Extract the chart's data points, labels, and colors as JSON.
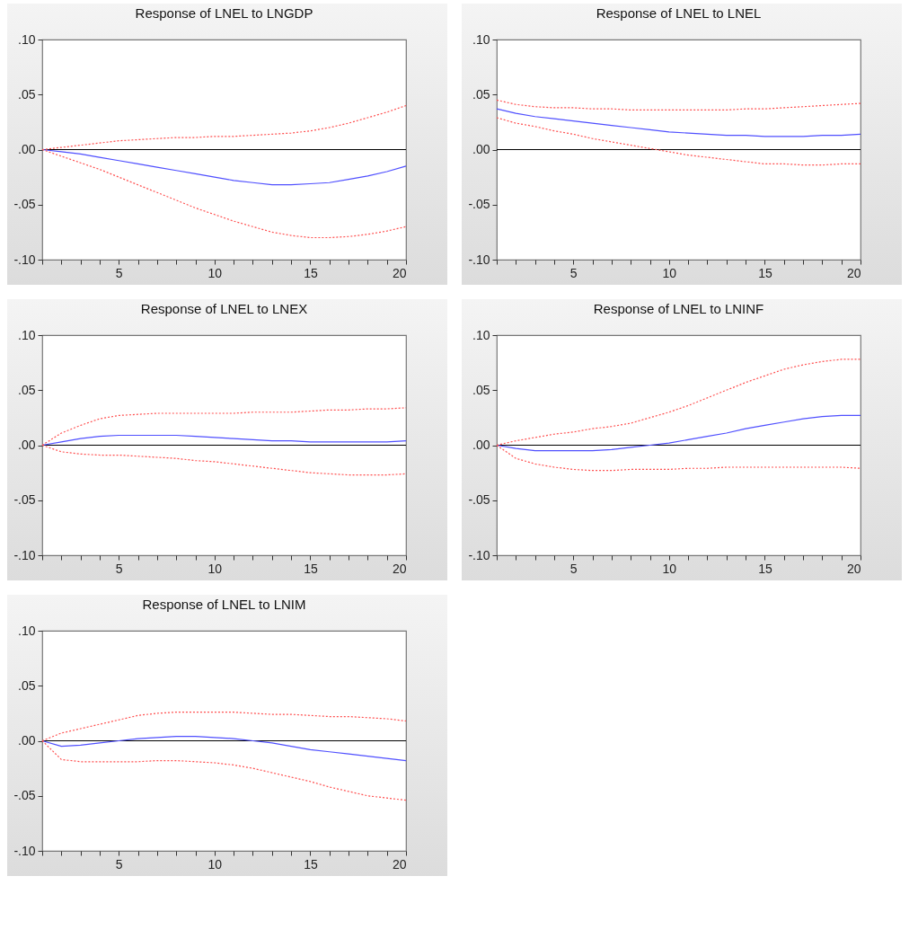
{
  "chart_data": [
    {
      "type": "line",
      "title": "Response of LNEL to LNGDP",
      "x": [
        1,
        2,
        3,
        4,
        5,
        6,
        7,
        8,
        9,
        10,
        11,
        12,
        13,
        14,
        15,
        16,
        17,
        18,
        19,
        20
      ],
      "xlim": [
        1,
        20
      ],
      "xticks": [
        {
          "value": 1,
          "label": null
        },
        {
          "value": 2,
          "label": null
        },
        {
          "value": 3,
          "label": null
        },
        {
          "value": 4,
          "label": null
        },
        5,
        {
          "value": 6,
          "label": null
        },
        {
          "value": 7,
          "label": null
        },
        {
          "value": 8,
          "label": null
        },
        {
          "value": 9,
          "label": null
        },
        10,
        {
          "value": 11,
          "label": null
        },
        {
          "value": 12,
          "label": null
        },
        {
          "value": 13,
          "label": null
        },
        {
          "value": 14,
          "label": null
        },
        15,
        {
          "value": 16,
          "label": null
        },
        {
          "value": 17,
          "label": null
        },
        {
          "value": 18,
          "label": null
        },
        {
          "value": 19,
          "label": null
        },
        20
      ],
      "ylim": [
        -0.1,
        0.1
      ],
      "yticks": [
        {
          "value": -0.1,
          "label": "-.10"
        },
        {
          "value": -0.05,
          "label": "-.05"
        },
        {
          "value": 0,
          "label": ".00"
        },
        {
          "value": 0.05,
          "label": ".05"
        },
        {
          "value": 0.1,
          "label": ".10"
        }
      ],
      "ref_lines": [
        {
          "axis": "y",
          "value": 0,
          "color": "#000000"
        }
      ],
      "series": [
        {
          "color": "#5050ff",
          "line_style": "solid",
          "values": [
            0,
            -0.002,
            -0.004,
            -0.007,
            -0.01,
            -0.013,
            -0.016,
            -0.019,
            -0.022,
            -0.025,
            -0.028,
            -0.03,
            -0.032,
            -0.032,
            -0.031,
            -0.03,
            -0.027,
            -0.024,
            -0.02,
            -0.015
          ]
        },
        {
          "color": "#ff5050",
          "line_style": "dotted",
          "values": [
            0,
            0.002,
            0.004,
            0.006,
            0.008,
            0.009,
            0.01,
            0.011,
            0.011,
            0.012,
            0.012,
            0.013,
            0.014,
            0.015,
            0.017,
            0.02,
            0.024,
            0.029,
            0.034,
            0.04
          ]
        },
        {
          "color": "#ff5050",
          "line_style": "dotted",
          "values": [
            0,
            -0.006,
            -0.012,
            -0.018,
            -0.025,
            -0.032,
            -0.039,
            -0.046,
            -0.053,
            -0.059,
            -0.065,
            -0.07,
            -0.075,
            -0.078,
            -0.08,
            -0.08,
            -0.079,
            -0.077,
            -0.074,
            -0.07
          ]
        }
      ]
    },
    {
      "type": "line",
      "title": "Response of LNEL to LNEL",
      "x": [
        1,
        2,
        3,
        4,
        5,
        6,
        7,
        8,
        9,
        10,
        11,
        12,
        13,
        14,
        15,
        16,
        17,
        18,
        19,
        20
      ],
      "xlim": [
        1,
        20
      ],
      "xticks": [
        {
          "value": 1,
          "label": null
        },
        {
          "value": 2,
          "label": null
        },
        {
          "value": 3,
          "label": null
        },
        {
          "value": 4,
          "label": null
        },
        5,
        {
          "value": 6,
          "label": null
        },
        {
          "value": 7,
          "label": null
        },
        {
          "value": 8,
          "label": null
        },
        {
          "value": 9,
          "label": null
        },
        10,
        {
          "value": 11,
          "label": null
        },
        {
          "value": 12,
          "label": null
        },
        {
          "value": 13,
          "label": null
        },
        {
          "value": 14,
          "label": null
        },
        15,
        {
          "value": 16,
          "label": null
        },
        {
          "value": 17,
          "label": null
        },
        {
          "value": 18,
          "label": null
        },
        {
          "value": 19,
          "label": null
        },
        20
      ],
      "ylim": [
        -0.1,
        0.1
      ],
      "yticks": [
        {
          "value": -0.1,
          "label": "-.10"
        },
        {
          "value": -0.05,
          "label": "-.05"
        },
        {
          "value": 0,
          "label": ".00"
        },
        {
          "value": 0.05,
          "label": ".05"
        },
        {
          "value": 0.1,
          "label": ".10"
        }
      ],
      "ref_lines": [
        {
          "axis": "y",
          "value": 0,
          "color": "#000000"
        }
      ],
      "series": [
        {
          "color": "#5050ff",
          "line_style": "solid",
          "values": [
            0.037,
            0.033,
            0.03,
            0.028,
            0.026,
            0.024,
            0.022,
            0.02,
            0.018,
            0.016,
            0.015,
            0.014,
            0.013,
            0.013,
            0.012,
            0.012,
            0.012,
            0.013,
            0.013,
            0.014
          ]
        },
        {
          "color": "#ff5050",
          "line_style": "dotted",
          "values": [
            0.045,
            0.041,
            0.039,
            0.038,
            0.038,
            0.037,
            0.037,
            0.036,
            0.036,
            0.036,
            0.036,
            0.036,
            0.036,
            0.037,
            0.037,
            0.038,
            0.039,
            0.04,
            0.041,
            0.042
          ]
        },
        {
          "color": "#ff5050",
          "line_style": "dotted",
          "values": [
            0.029,
            0.024,
            0.021,
            0.017,
            0.014,
            0.01,
            0.007,
            0.004,
            0.001,
            -0.002,
            -0.005,
            -0.007,
            -0.009,
            -0.011,
            -0.013,
            -0.013,
            -0.014,
            -0.014,
            -0.013,
            -0.013
          ]
        }
      ]
    },
    {
      "type": "line",
      "title": "Response of LNEL to LNEX",
      "x": [
        1,
        2,
        3,
        4,
        5,
        6,
        7,
        8,
        9,
        10,
        11,
        12,
        13,
        14,
        15,
        16,
        17,
        18,
        19,
        20
      ],
      "xlim": [
        1,
        20
      ],
      "xticks": [
        {
          "value": 1,
          "label": null
        },
        {
          "value": 2,
          "label": null
        },
        {
          "value": 3,
          "label": null
        },
        {
          "value": 4,
          "label": null
        },
        5,
        {
          "value": 6,
          "label": null
        },
        {
          "value": 7,
          "label": null
        },
        {
          "value": 8,
          "label": null
        },
        {
          "value": 9,
          "label": null
        },
        10,
        {
          "value": 11,
          "label": null
        },
        {
          "value": 12,
          "label": null
        },
        {
          "value": 13,
          "label": null
        },
        {
          "value": 14,
          "label": null
        },
        15,
        {
          "value": 16,
          "label": null
        },
        {
          "value": 17,
          "label": null
        },
        {
          "value": 18,
          "label": null
        },
        {
          "value": 19,
          "label": null
        },
        20
      ],
      "ylim": [
        -0.1,
        0.1
      ],
      "yticks": [
        {
          "value": -0.1,
          "label": "-.10"
        },
        {
          "value": -0.05,
          "label": "-.05"
        },
        {
          "value": 0,
          "label": ".00"
        },
        {
          "value": 0.05,
          "label": ".05"
        },
        {
          "value": 0.1,
          "label": ".10"
        }
      ],
      "ref_lines": [
        {
          "axis": "y",
          "value": 0,
          "color": "#000000"
        }
      ],
      "series": [
        {
          "color": "#5050ff",
          "line_style": "solid",
          "values": [
            0,
            0.003,
            0.006,
            0.008,
            0.009,
            0.009,
            0.009,
            0.009,
            0.008,
            0.007,
            0.006,
            0.005,
            0.004,
            0.004,
            0.003,
            0.003,
            0.003,
            0.003,
            0.003,
            0.004
          ]
        },
        {
          "color": "#ff5050",
          "line_style": "dotted",
          "values": [
            0,
            0.011,
            0.018,
            0.024,
            0.027,
            0.028,
            0.029,
            0.029,
            0.029,
            0.029,
            0.029,
            0.03,
            0.03,
            0.03,
            0.031,
            0.032,
            0.032,
            0.033,
            0.033,
            0.034
          ]
        },
        {
          "color": "#ff5050",
          "line_style": "dotted",
          "values": [
            0,
            -0.006,
            -0.008,
            -0.009,
            -0.009,
            -0.01,
            -0.011,
            -0.012,
            -0.014,
            -0.015,
            -0.017,
            -0.019,
            -0.021,
            -0.023,
            -0.025,
            -0.026,
            -0.027,
            -0.027,
            -0.027,
            -0.026
          ]
        }
      ]
    },
    {
      "type": "line",
      "title": "Response of LNEL to LNINF",
      "x": [
        1,
        2,
        3,
        4,
        5,
        6,
        7,
        8,
        9,
        10,
        11,
        12,
        13,
        14,
        15,
        16,
        17,
        18,
        19,
        20
      ],
      "xlim": [
        1,
        20
      ],
      "xticks": [
        {
          "value": 1,
          "label": null
        },
        {
          "value": 2,
          "label": null
        },
        {
          "value": 3,
          "label": null
        },
        {
          "value": 4,
          "label": null
        },
        5,
        {
          "value": 6,
          "label": null
        },
        {
          "value": 7,
          "label": null
        },
        {
          "value": 8,
          "label": null
        },
        {
          "value": 9,
          "label": null
        },
        10,
        {
          "value": 11,
          "label": null
        },
        {
          "value": 12,
          "label": null
        },
        {
          "value": 13,
          "label": null
        },
        {
          "value": 14,
          "label": null
        },
        15,
        {
          "value": 16,
          "label": null
        },
        {
          "value": 17,
          "label": null
        },
        {
          "value": 18,
          "label": null
        },
        {
          "value": 19,
          "label": null
        },
        20
      ],
      "ylim": [
        -0.1,
        0.1
      ],
      "yticks": [
        {
          "value": -0.1,
          "label": "-.10"
        },
        {
          "value": -0.05,
          "label": "-.05"
        },
        {
          "value": 0,
          "label": ".00"
        },
        {
          "value": 0.05,
          "label": ".05"
        },
        {
          "value": 0.1,
          "label": ".10"
        }
      ],
      "ref_lines": [
        {
          "axis": "y",
          "value": 0,
          "color": "#000000"
        }
      ],
      "series": [
        {
          "color": "#5050ff",
          "line_style": "solid",
          "values": [
            0,
            -0.003,
            -0.005,
            -0.005,
            -0.005,
            -0.005,
            -0.004,
            -0.002,
            0,
            0.002,
            0.005,
            0.008,
            0.011,
            0.015,
            0.018,
            0.021,
            0.024,
            0.026,
            0.027,
            0.027
          ]
        },
        {
          "color": "#ff5050",
          "line_style": "dotted",
          "values": [
            0,
            0.004,
            0.007,
            0.01,
            0.012,
            0.015,
            0.017,
            0.02,
            0.025,
            0.03,
            0.036,
            0.043,
            0.05,
            0.057,
            0.063,
            0.069,
            0.073,
            0.076,
            0.078,
            0.078
          ]
        },
        {
          "color": "#ff5050",
          "line_style": "dotted",
          "values": [
            0,
            -0.012,
            -0.017,
            -0.02,
            -0.022,
            -0.023,
            -0.023,
            -0.022,
            -0.022,
            -0.022,
            -0.021,
            -0.021,
            -0.02,
            -0.02,
            -0.02,
            -0.02,
            -0.02,
            -0.02,
            -0.02,
            -0.021
          ]
        }
      ]
    },
    {
      "type": "line",
      "title": "Response of LNEL to LNIM",
      "x": [
        1,
        2,
        3,
        4,
        5,
        6,
        7,
        8,
        9,
        10,
        11,
        12,
        13,
        14,
        15,
        16,
        17,
        18,
        19,
        20
      ],
      "xlim": [
        1,
        20
      ],
      "xticks": [
        {
          "value": 1,
          "label": null
        },
        {
          "value": 2,
          "label": null
        },
        {
          "value": 3,
          "label": null
        },
        {
          "value": 4,
          "label": null
        },
        5,
        {
          "value": 6,
          "label": null
        },
        {
          "value": 7,
          "label": null
        },
        {
          "value": 8,
          "label": null
        },
        {
          "value": 9,
          "label": null
        },
        10,
        {
          "value": 11,
          "label": null
        },
        {
          "value": 12,
          "label": null
        },
        {
          "value": 13,
          "label": null
        },
        {
          "value": 14,
          "label": null
        },
        15,
        {
          "value": 16,
          "label": null
        },
        {
          "value": 17,
          "label": null
        },
        {
          "value": 18,
          "label": null
        },
        {
          "value": 19,
          "label": null
        },
        20
      ],
      "ylim": [
        -0.1,
        0.1
      ],
      "yticks": [
        {
          "value": -0.1,
          "label": "-.10"
        },
        {
          "value": -0.05,
          "label": "-.05"
        },
        {
          "value": 0,
          "label": ".00"
        },
        {
          "value": 0.05,
          "label": ".05"
        },
        {
          "value": 0.1,
          "label": ".10"
        }
      ],
      "ref_lines": [
        {
          "axis": "y",
          "value": 0,
          "color": "#000000"
        }
      ],
      "series": [
        {
          "color": "#5050ff",
          "line_style": "solid",
          "values": [
            0,
            -0.005,
            -0.004,
            -0.002,
            0,
            0.002,
            0.003,
            0.004,
            0.004,
            0.003,
            0.002,
            0,
            -0.002,
            -0.005,
            -0.008,
            -0.01,
            -0.012,
            -0.014,
            -0.016,
            -0.018
          ]
        },
        {
          "color": "#ff5050",
          "line_style": "dotted",
          "values": [
            0,
            0.007,
            0.011,
            0.015,
            0.019,
            0.023,
            0.025,
            0.026,
            0.026,
            0.026,
            0.026,
            0.025,
            0.024,
            0.024,
            0.023,
            0.022,
            0.022,
            0.021,
            0.02,
            0.018
          ]
        },
        {
          "color": "#ff5050",
          "line_style": "dotted",
          "values": [
            0,
            -0.017,
            -0.019,
            -0.019,
            -0.019,
            -0.019,
            -0.018,
            -0.018,
            -0.019,
            -0.02,
            -0.022,
            -0.025,
            -0.029,
            -0.033,
            -0.037,
            -0.042,
            -0.046,
            -0.05,
            -0.052,
            -0.054
          ]
        }
      ]
    }
  ]
}
